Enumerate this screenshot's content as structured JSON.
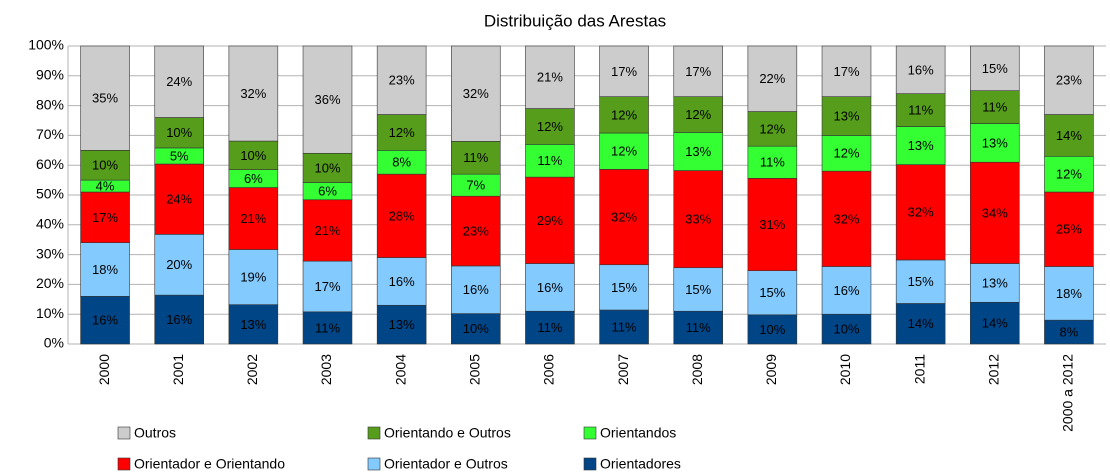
{
  "chart_data": {
    "type": "stacked_bar_100",
    "title": "Distribuição das Arestas",
    "categories": [
      "2000",
      "2001",
      "2002",
      "2003",
      "2004",
      "2005",
      "2006",
      "2007",
      "2008",
      "2009",
      "2010",
      "2011",
      "2012",
      "2000 a 2012"
    ],
    "series": [
      {
        "name": "Orientadores",
        "color": "#004586",
        "values": [
          16,
          16.4,
          13.2,
          10.8,
          13,
          10.2,
          11,
          11.4,
          11.0,
          9.8,
          10,
          13.6,
          14,
          8
        ],
        "value_labels": [
          "16%",
          "16%",
          "13%",
          "11%",
          "13%",
          "10%",
          "11%",
          "11%",
          "11%",
          "10%",
          "10%",
          "14%",
          "14%",
          "8%"
        ]
      },
      {
        "name": "Orientador e Outros",
        "color": "#83caff",
        "values": [
          18,
          20.4,
          18.5,
          17.0,
          16,
          16.0,
          16,
          15.2,
          14.6,
          14.8,
          16,
          14.6,
          13,
          18
        ],
        "value_labels": [
          "18%",
          "20%",
          "19%",
          "17%",
          "16%",
          "16%",
          "16%",
          "15%",
          "15%",
          "15%",
          "16%",
          "15%",
          "13%",
          "18%"
        ]
      },
      {
        "name": "Orientador e Orientando",
        "color": "#ff0000",
        "values": [
          17,
          23.6,
          20.8,
          20.6,
          28,
          23.4,
          29,
          32.0,
          32.6,
          31.0,
          32,
          32.0,
          34,
          25
        ],
        "value_labels": [
          "17%",
          "24%",
          "21%",
          "21%",
          "28%",
          "23%",
          "29%",
          "32%",
          "33%",
          "31%",
          "32%",
          "32%",
          "34%",
          "25%"
        ]
      },
      {
        "name": "Orientandos",
        "color": "#33ff33",
        "values": [
          4,
          5.4,
          6.0,
          5.8,
          8,
          7.4,
          11,
          12.2,
          12.8,
          10.8,
          12,
          12.8,
          13,
          12
        ],
        "value_labels": [
          "4%",
          "5%",
          "6%",
          "6%",
          "8%",
          "7%",
          "11%",
          "12%",
          "13%",
          "11%",
          "12%",
          "13%",
          "13%",
          "12%"
        ]
      },
      {
        "name": "Orientando e Outros",
        "color": "#579d1c",
        "values": [
          10,
          10.2,
          9.6,
          9.8,
          12,
          11.0,
          12,
          12.2,
          12.0,
          11.6,
          13,
          11.0,
          11,
          14
        ],
        "value_labels": [
          "10%",
          "10%",
          "10%",
          "10%",
          "12%",
          "11%",
          "12%",
          "12%",
          "12%",
          "12%",
          "13%",
          "11%",
          "11%",
          "14%"
        ]
      },
      {
        "name": "Outros",
        "color": "#cccccc",
        "values": [
          35,
          24.0,
          31.9,
          36.0,
          23,
          32.0,
          21,
          17.0,
          17.0,
          22.0,
          17,
          16.0,
          15,
          23
        ],
        "value_labels": [
          "35%",
          "24%",
          "32%",
          "36%",
          "23%",
          "32%",
          "21%",
          "17%",
          "17%",
          "22%",
          "17%",
          "16%",
          "15%",
          "23%"
        ]
      }
    ],
    "ylim": [
      0,
      100
    ],
    "yticks": [
      {
        "value": 0,
        "label": "0%"
      },
      {
        "value": 10,
        "label": "10%"
      },
      {
        "value": 20,
        "label": "20%"
      },
      {
        "value": 30,
        "label": "30%"
      },
      {
        "value": 40,
        "label": "40%"
      },
      {
        "value": 50,
        "label": "50%"
      },
      {
        "value": 60,
        "label": "60%"
      },
      {
        "value": 70,
        "label": "70%"
      },
      {
        "value": 80,
        "label": "80%"
      },
      {
        "value": 90,
        "label": "90%"
      },
      {
        "value": 100,
        "label": "100%"
      }
    ],
    "grid": true
  }
}
